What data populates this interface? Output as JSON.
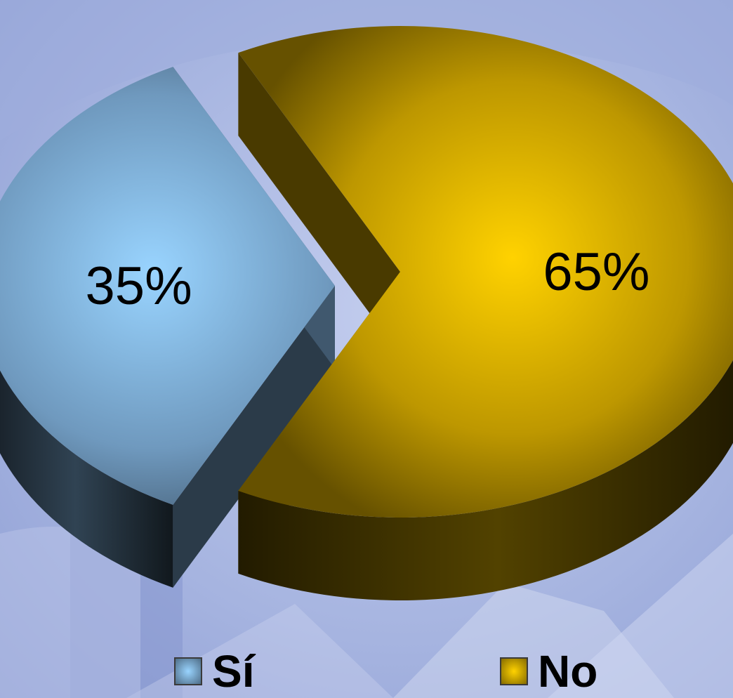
{
  "chart_data": {
    "type": "pie",
    "style": "3d-exploded",
    "slices": [
      {
        "label": "Sí",
        "value": 35,
        "value_label": "35%",
        "color": "#8ec4f4"
      },
      {
        "label": "No",
        "value": 65,
        "value_label": "65%",
        "color": "#f2c200"
      }
    ],
    "legend": {
      "position": "bottom",
      "items": [
        {
          "label": "Sí",
          "color": "#8ec4f4"
        },
        {
          "label": "No",
          "color": "#f2c200"
        }
      ]
    }
  }
}
